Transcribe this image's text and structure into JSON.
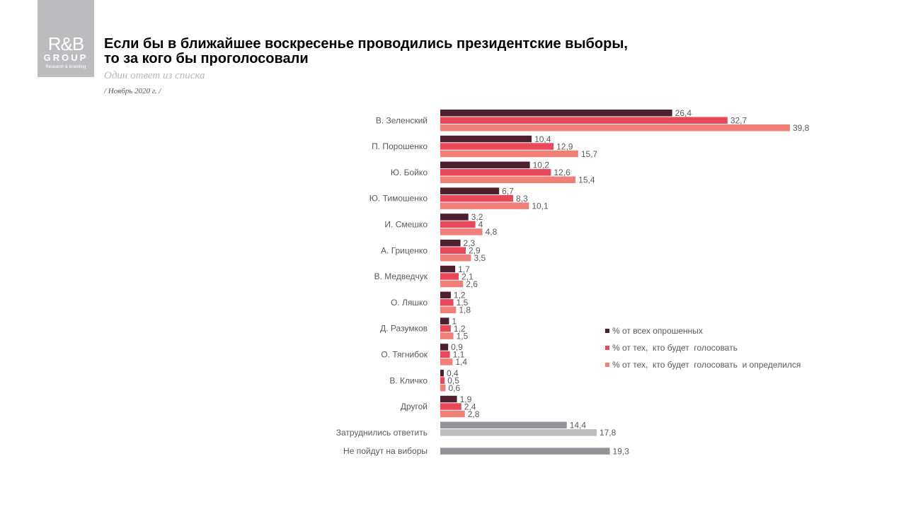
{
  "logo": {
    "line1": "R&B",
    "line2": "GROUP",
    "line3": "Research & Branding"
  },
  "header": {
    "title_line1": "Если бы в ближайшее воскресенье проводились президентские выборы,",
    "title_line2": "то за кого бы проголосовали",
    "subtitle": "Один ответ из списка",
    "date": "/ Ноябрь 2020 г. /"
  },
  "chart_data": {
    "type": "bar",
    "orientation": "horizontal",
    "legend_position": "right",
    "categories": [
      "В. Зеленский",
      "П. Порошенко",
      "Ю. Бойко",
      "Ю. Тимошенко",
      "И. Смешко",
      "А. Гриценко",
      "В. Медведчук",
      "О. Ляшко",
      "Д. Разумков",
      "О. Тягнибок",
      "В. Кличко",
      "Другой",
      "Затруднились  ответить",
      "Не пойдут на виборы"
    ],
    "series": [
      {
        "name": "% от всех опрошенных",
        "color": "#4e1f2e",
        "values": [
          26.4,
          10.4,
          10.2,
          6.7,
          3.2,
          2.3,
          1.7,
          1.2,
          1,
          0.9,
          0.4,
          1.9,
          null,
          null
        ]
      },
      {
        "name": "% от тех,  кто будет  голосовать",
        "color": "#e8485a",
        "values": [
          32.7,
          12.9,
          12.6,
          8.3,
          4,
          2.9,
          2.1,
          1.5,
          1.2,
          1.1,
          0.5,
          2.4,
          null,
          null
        ]
      },
      {
        "name": "% от тех,  кто будет  голосовать  и определился",
        "color": "#f08077",
        "values": [
          39.8,
          15.7,
          15.4,
          10.1,
          4.8,
          3.5,
          2.6,
          1.8,
          1.5,
          1.4,
          0.6,
          2.8,
          null,
          null
        ]
      }
    ],
    "extra_bars": [
      {
        "category": "Затруднились  ответить",
        "values": [
          14.4,
          17.8
        ],
        "colors": [
          "#939398",
          "#bdbdbf"
        ]
      },
      {
        "category": "Не пойдут на виборы",
        "values": [
          19.3
        ],
        "colors": [
          "#939398"
        ]
      }
    ]
  }
}
